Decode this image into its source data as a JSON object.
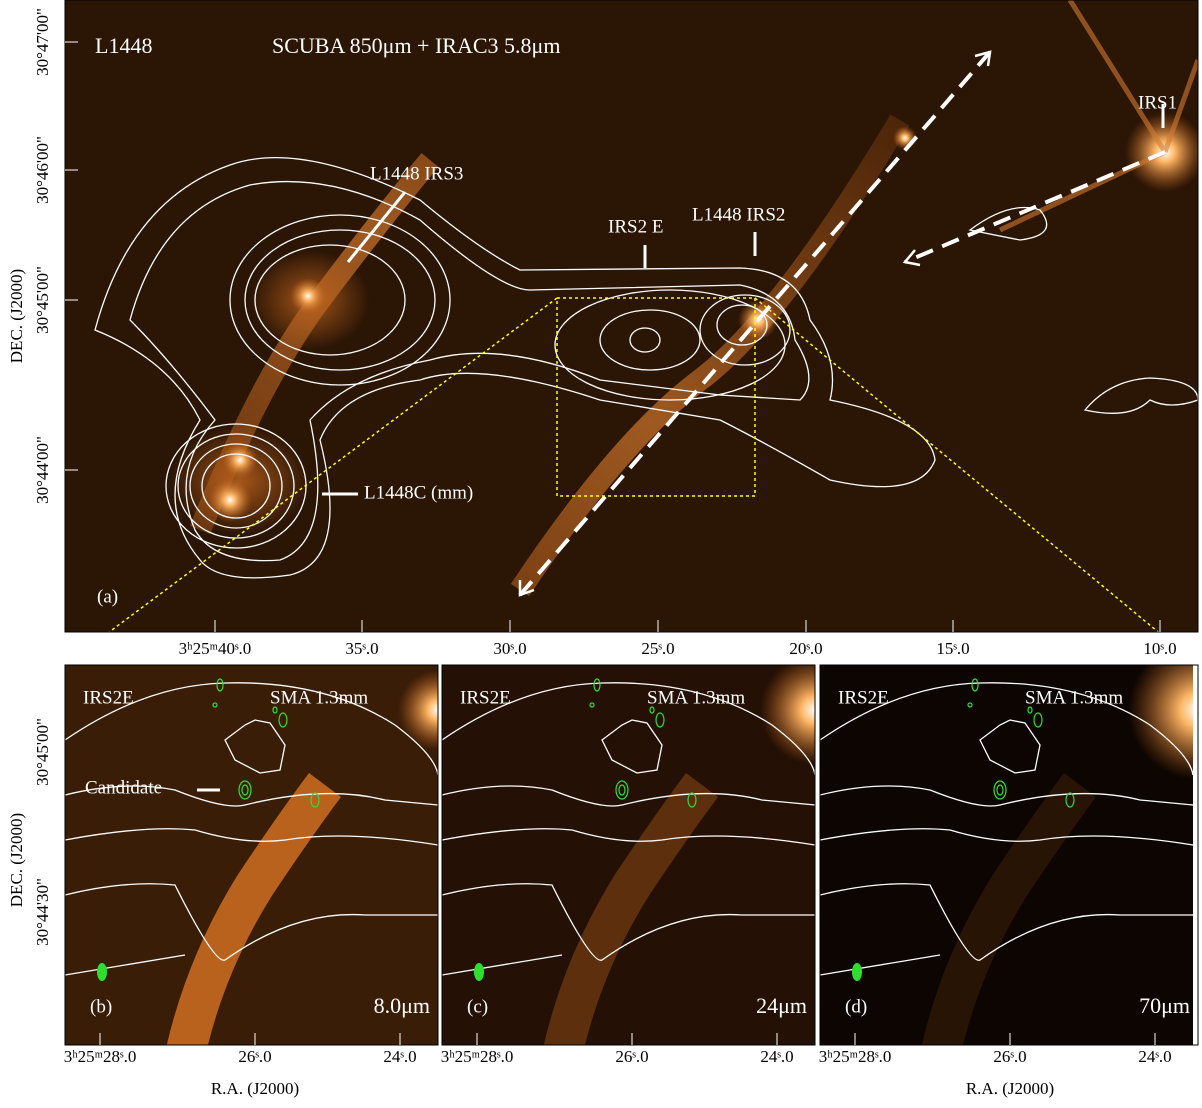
{
  "panel_a": {
    "label": "(a)",
    "field": "L1448",
    "title": "SCUBA 850μm + IRAC3 5.8μm",
    "annotations": {
      "irs3": "L1448 IRS3",
      "irs2e": "IRS2 E",
      "irs2": "L1448 IRS2",
      "irs1": "IRS1",
      "l1448c": "L1448C (mm)"
    },
    "y_label": "DEC. (J2000)",
    "y_ticks": [
      "30°47'00\"",
      "30°46'00\"",
      "30°45'00\"",
      "30°44'00\""
    ],
    "x_ticks": [
      "3ʰ25ᵐ40ˢ.0",
      "35ˢ.0",
      "30ˢ.0",
      "25ˢ.0",
      "20ˢ.0",
      "15ˢ.0",
      "10ˢ.0"
    ]
  },
  "lower": {
    "y_label": "DEC. (J2000)",
    "y_ticks": [
      "30°45'00\"",
      "30°44'30\""
    ],
    "x_ticks": [
      "3ʰ25ᵐ28ˢ.0",
      "26ˢ.0",
      "24ˢ.0"
    ],
    "x_label": "R.A. (J2000)"
  },
  "panels": [
    {
      "label": "(b)",
      "source": "IRS2E",
      "instrument": "SMA 1.3mm",
      "wavelength": "8.0μm",
      "candidate": "Candidate"
    },
    {
      "label": "(c)",
      "source": "IRS2E",
      "instrument": "SMA 1.3mm",
      "wavelength": "24μm"
    },
    {
      "label": "(d)",
      "source": "IRS2E",
      "instrument": "SMA 1.3mm",
      "wavelength": "70μm"
    }
  ]
}
